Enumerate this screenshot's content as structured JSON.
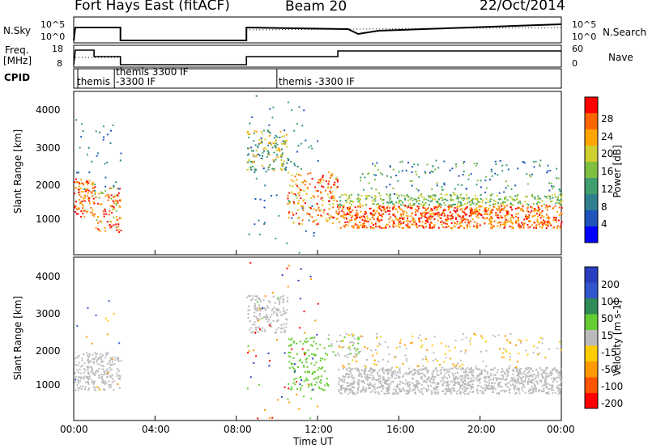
{
  "header": {
    "station": "Fort Hays East (fitACF)",
    "beam": "Beam 20",
    "date": "22/Oct/2014"
  },
  "top_panel": {
    "left_label": "N.Sky",
    "left_ticks": [
      "10^5",
      "10^0"
    ],
    "right_ticks": [
      "10^5",
      "10^0"
    ],
    "right_label": "N.Search"
  },
  "freq_panel": {
    "left_label_line1": "Freq.",
    "left_label_line2": "[MHz]",
    "left_ticks": [
      "18",
      "8"
    ],
    "right_ticks": [
      "60",
      "0"
    ],
    "right_label": "Nave"
  },
  "cpid_panel": {
    "label": "CPID",
    "segments": [
      "themis",
      "themis 3300 IF",
      "-3300 IF",
      "themis -3300 IF"
    ]
  },
  "colors": {
    "power": [
      "#0000ff",
      "#1f55bb",
      "#2f7f8f",
      "#3f9f6f",
      "#7fbf3f",
      "#cfcf2f",
      "#ffa500",
      "#ff6600",
      "#ff0000"
    ],
    "velocity": [
      "#2a3fbf",
      "#3355cc",
      "#2e8b57",
      "#66cc33",
      "#bbbbbb",
      "#ffcc00",
      "#ff9900",
      "#ff5500",
      "#ff0000"
    ]
  },
  "chart_data": [
    {
      "type": "heatmap",
      "name": "power",
      "title": "",
      "ylabel": "Slant Range [km]",
      "xlabel": "",
      "ylim": [
        180,
        4500
      ],
      "xlim": [
        0,
        24
      ],
      "y_ticks": [
        "4000",
        "3000",
        "2000",
        "1000"
      ],
      "x_ticks": [],
      "colorbar": {
        "label": "Power [dB]",
        "ticks": [
          "28",
          "24",
          "20",
          "16",
          "12",
          "8",
          "4"
        ],
        "range": [
          0,
          32
        ]
      }
    },
    {
      "type": "heatmap",
      "name": "velocity",
      "title": "",
      "ylabel": "Slant Range [km]",
      "xlabel": "Time UT",
      "ylim": [
        180,
        4500
      ],
      "xlim": [
        0,
        24
      ],
      "y_ticks": [
        "4000",
        "3000",
        "2000",
        "1000"
      ],
      "x_ticks": [
        "00:00",
        "04:00",
        "08:00",
        "12:00",
        "16:00",
        "20:00",
        "00:00"
      ],
      "colorbar": {
        "label": "Velocity [m s-1]",
        "ticks": [
          "200",
          "100",
          "50",
          "15",
          "-15",
          "-50",
          "-100",
          "-200"
        ]
      }
    }
  ]
}
